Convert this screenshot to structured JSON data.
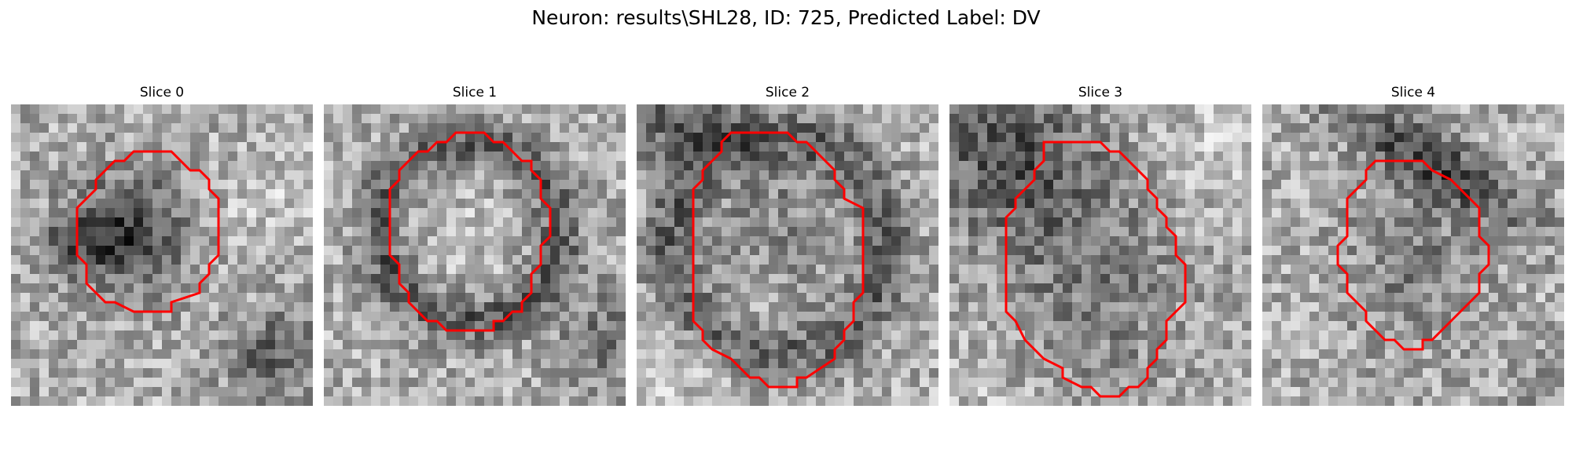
{
  "figure": {
    "title": "Neuron: results\\SHL28, ID: 725, Predicted Label: DV"
  },
  "style": {
    "contour_color": "#ff0000"
  },
  "slices": [
    {
      "title": "Slice 0",
      "pattern": "dark-center-blob",
      "contour": [
        [
          13,
          5
        ],
        [
          17,
          5
        ],
        [
          19,
          7
        ],
        [
          20,
          7
        ],
        [
          21,
          8
        ],
        [
          21,
          9
        ],
        [
          22,
          10
        ],
        [
          22,
          16
        ],
        [
          21,
          17
        ],
        [
          21,
          18
        ],
        [
          20,
          19
        ],
        [
          20,
          20
        ],
        [
          17,
          21
        ],
        [
          17,
          22
        ],
        [
          13,
          22
        ],
        [
          11,
          21
        ],
        [
          10,
          21
        ],
        [
          9,
          20
        ],
        [
          8,
          19
        ],
        [
          8,
          17
        ],
        [
          7,
          16
        ],
        [
          7,
          11
        ],
        [
          8,
          10
        ],
        [
          9,
          9
        ],
        [
          9,
          8
        ],
        [
          10,
          7
        ],
        [
          11,
          6
        ],
        [
          12,
          6
        ]
      ]
    },
    {
      "title": "Slice 1",
      "pattern": "dark-ring",
      "contour": [
        [
          14,
          3
        ],
        [
          17,
          3
        ],
        [
          18,
          4
        ],
        [
          19,
          4
        ],
        [
          21,
          6
        ],
        [
          22,
          6
        ],
        [
          22,
          7
        ],
        [
          23,
          8
        ],
        [
          23,
          10
        ],
        [
          24,
          11
        ],
        [
          24,
          14
        ],
        [
          23,
          15
        ],
        [
          23,
          17
        ],
        [
          22,
          18
        ],
        [
          22,
          20
        ],
        [
          21,
          21
        ],
        [
          21,
          22
        ],
        [
          20,
          22
        ],
        [
          19,
          23
        ],
        [
          18,
          23
        ],
        [
          18,
          24
        ],
        [
          13,
          24
        ],
        [
          12,
          23
        ],
        [
          11,
          23
        ],
        [
          9,
          21
        ],
        [
          9,
          20
        ],
        [
          8,
          19
        ],
        [
          8,
          17
        ],
        [
          7,
          16
        ],
        [
          7,
          9
        ],
        [
          8,
          8
        ],
        [
          8,
          7
        ],
        [
          9,
          6
        ],
        [
          10,
          5
        ],
        [
          11,
          5
        ],
        [
          12,
          4
        ],
        [
          13,
          4
        ]
      ]
    },
    {
      "title": "Slice 2",
      "pattern": "dark-ring-large",
      "contour": [
        [
          10,
          3
        ],
        [
          16,
          3
        ],
        [
          17,
          4
        ],
        [
          18,
          4
        ],
        [
          21,
          7
        ],
        [
          21,
          8
        ],
        [
          22,
          9
        ],
        [
          22,
          10
        ],
        [
          24,
          11
        ],
        [
          24,
          20
        ],
        [
          23,
          21
        ],
        [
          23,
          23
        ],
        [
          22,
          24
        ],
        [
          22,
          25
        ],
        [
          21,
          26
        ],
        [
          21,
          27
        ],
        [
          18,
          29
        ],
        [
          17,
          29
        ],
        [
          17,
          30
        ],
        [
          14,
          30
        ],
        [
          13,
          29
        ],
        [
          12,
          29
        ],
        [
          11,
          28
        ],
        [
          10,
          27
        ],
        [
          8,
          26
        ],
        [
          7,
          25
        ],
        [
          7,
          24
        ],
        [
          6,
          23
        ],
        [
          6,
          14
        ],
        [
          6,
          9
        ],
        [
          7,
          8
        ],
        [
          7,
          7
        ],
        [
          8,
          6
        ],
        [
          9,
          5
        ],
        [
          9,
          4
        ]
      ]
    },
    {
      "title": "Slice 3",
      "pattern": "dark-upper-left",
      "contour": [
        [
          10,
          4
        ],
        [
          16,
          4
        ],
        [
          17,
          5
        ],
        [
          18,
          5
        ],
        [
          21,
          8
        ],
        [
          21,
          9
        ],
        [
          22,
          10
        ],
        [
          22,
          11
        ],
        [
          23,
          12
        ],
        [
          23,
          13
        ],
        [
          24,
          14
        ],
        [
          24,
          16
        ],
        [
          25,
          17
        ],
        [
          25,
          21
        ],
        [
          24,
          22
        ],
        [
          23,
          23
        ],
        [
          23,
          25
        ],
        [
          22,
          26
        ],
        [
          22,
          27
        ],
        [
          21,
          28
        ],
        [
          21,
          29
        ],
        [
          20,
          30
        ],
        [
          19,
          30
        ],
        [
          18,
          31
        ],
        [
          16,
          31
        ],
        [
          15,
          30
        ],
        [
          14,
          30
        ],
        [
          12,
          29
        ],
        [
          12,
          28
        ],
        [
          10,
          27
        ],
        [
          9,
          26
        ],
        [
          8,
          25
        ],
        [
          7,
          23
        ],
        [
          6,
          22
        ],
        [
          6,
          18
        ],
        [
          6,
          17
        ],
        [
          6,
          12
        ],
        [
          7,
          11
        ],
        [
          7,
          10
        ],
        [
          8,
          9
        ],
        [
          9,
          8
        ],
        [
          9,
          7
        ],
        [
          10,
          6
        ]
      ]
    },
    {
      "title": "Slice 4",
      "pattern": "dark-band-top",
      "contour": [
        [
          12,
          6
        ],
        [
          17,
          6
        ],
        [
          18,
          7
        ],
        [
          20,
          8
        ],
        [
          21,
          9
        ],
        [
          22,
          10
        ],
        [
          23,
          11
        ],
        [
          23,
          14
        ],
        [
          24,
          15
        ],
        [
          24,
          17
        ],
        [
          23,
          18
        ],
        [
          23,
          20
        ],
        [
          22,
          21
        ],
        [
          21,
          22
        ],
        [
          20,
          23
        ],
        [
          19,
          24
        ],
        [
          18,
          25
        ],
        [
          17,
          25
        ],
        [
          17,
          26
        ],
        [
          15,
          26
        ],
        [
          14,
          25
        ],
        [
          13,
          25
        ],
        [
          12,
          24
        ],
        [
          11,
          23
        ],
        [
          11,
          22
        ],
        [
          10,
          21
        ],
        [
          9,
          20
        ],
        [
          9,
          18
        ],
        [
          8,
          17
        ],
        [
          8,
          15
        ],
        [
          9,
          14
        ],
        [
          9,
          11
        ],
        [
          9,
          10
        ],
        [
          10,
          9
        ],
        [
          11,
          8
        ],
        [
          11,
          7
        ]
      ]
    }
  ]
}
